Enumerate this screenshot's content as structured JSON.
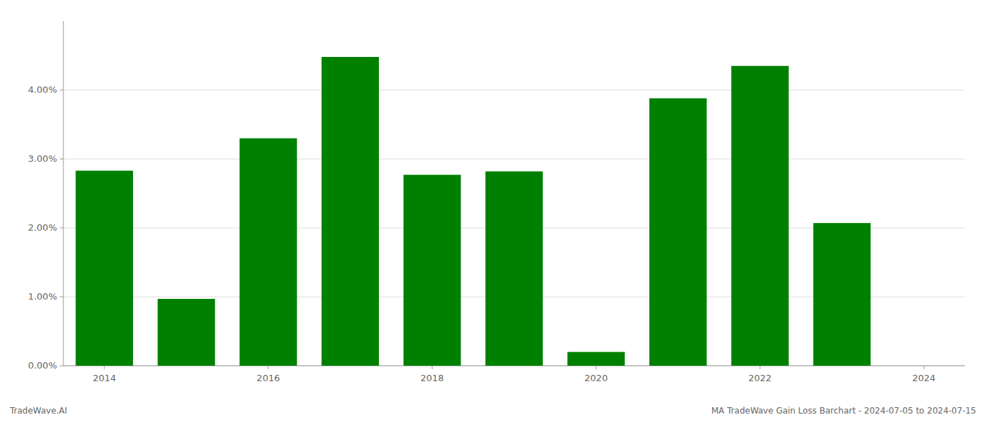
{
  "chart_data": {
    "type": "bar",
    "x": [
      2014,
      2015,
      2016,
      2017,
      2018,
      2019,
      2020,
      2021,
      2022,
      2023,
      2024
    ],
    "values": [
      0.0283,
      0.0097,
      0.033,
      0.0448,
      0.0277,
      0.0282,
      0.002,
      0.0388,
      0.0435,
      0.0207,
      0.0
    ],
    "color": "#008000",
    "xlim": [
      2013.5,
      2024.5
    ],
    "xticks": [
      2014,
      2016,
      2018,
      2020,
      2022,
      2024
    ],
    "ylim": [
      0,
      0.05
    ],
    "yticks": [
      {
        "value": 0.0,
        "label": "0.00%"
      },
      {
        "value": 0.01,
        "label": "1.00%"
      },
      {
        "value": 0.02,
        "label": "2.00%"
      },
      {
        "value": 0.03,
        "label": "3.00%"
      },
      {
        "value": 0.04,
        "label": "4.00%"
      }
    ],
    "grid": true,
    "annotations": [
      "TradeWave.AI",
      "MA TradeWave Gain Loss Barchart - 2024-07-05 to 2024-07-15"
    ]
  }
}
